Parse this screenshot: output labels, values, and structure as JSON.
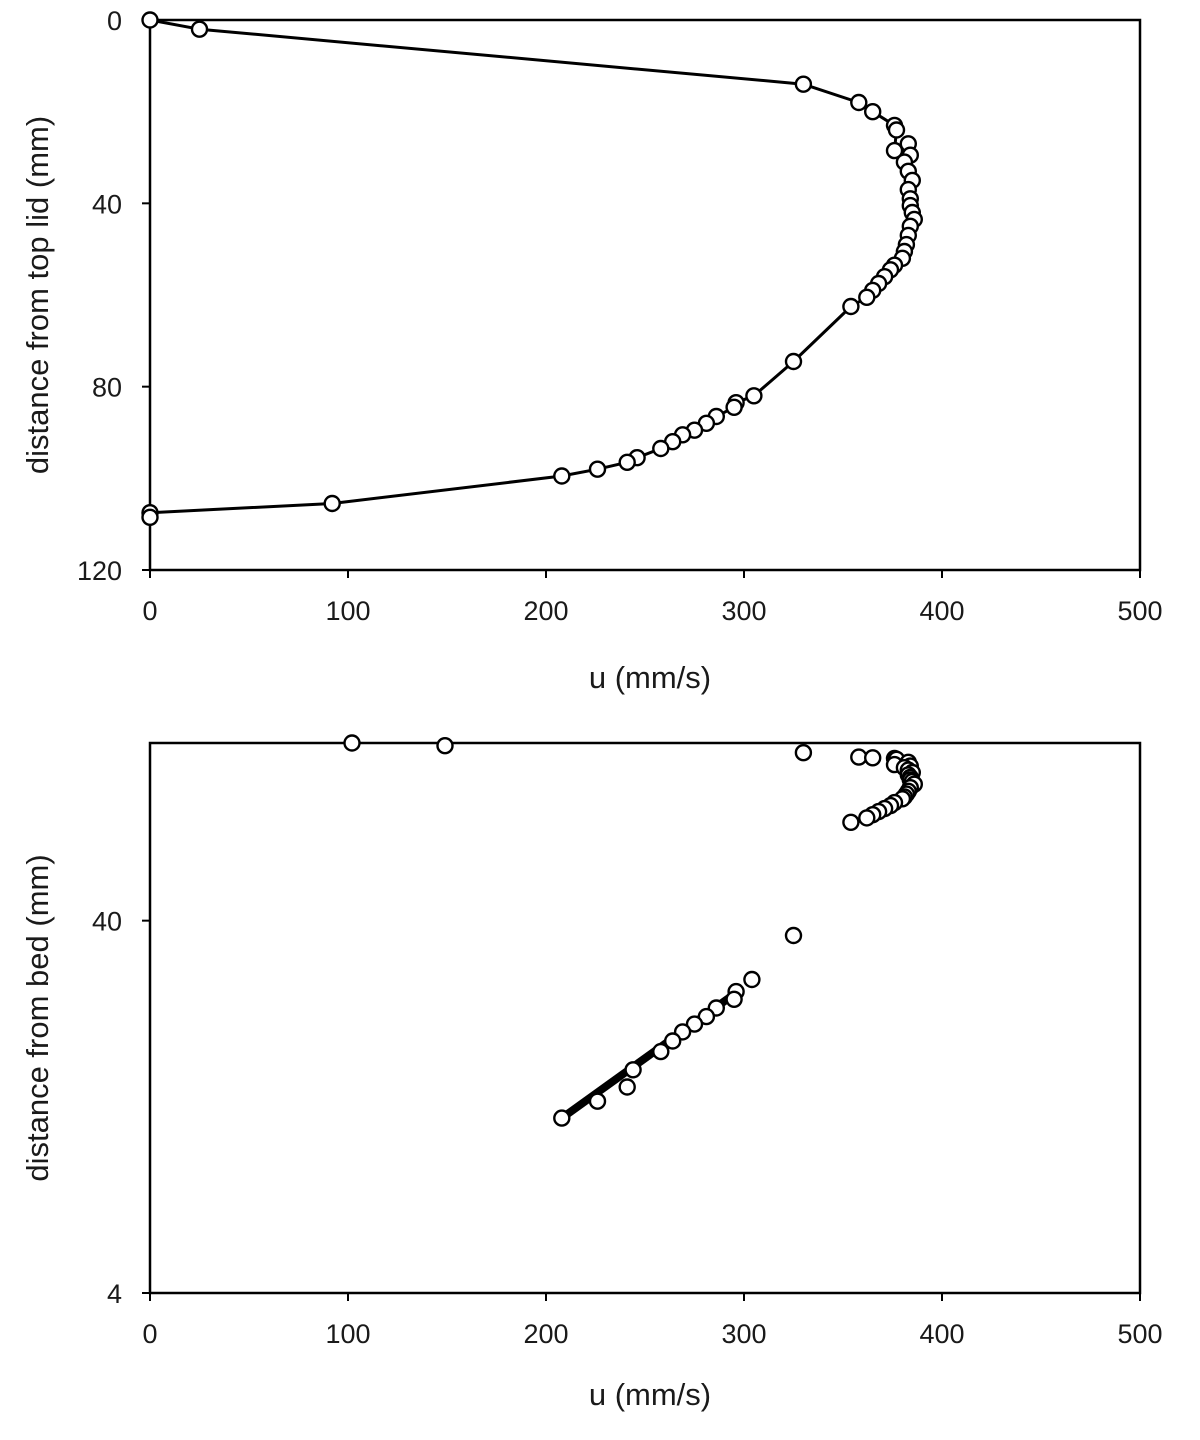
{
  "chart_data": [
    {
      "type": "line",
      "title": "",
      "xlabel": "u (mm/s)",
      "ylabel": "distance from top lid (mm)",
      "xlim": [
        0,
        500
      ],
      "ylim": [
        0,
        120
      ],
      "y_inverted": true,
      "x_ticks": [
        "0",
        "100",
        "200",
        "300",
        "400",
        "500"
      ],
      "y_ticks": [
        "0",
        "40",
        "80",
        "120"
      ],
      "grid": false,
      "legend": "none",
      "marker": "open-circle",
      "series": [
        {
          "x": [
            0,
            25,
            330,
            358,
            365,
            376,
            377,
            376,
            383,
            384,
            381,
            383,
            385,
            383,
            384,
            384,
            385,
            386,
            384,
            383,
            382,
            381,
            380,
            376,
            374,
            371,
            368,
            365,
            362,
            354,
            325,
            305,
            296,
            295,
            286,
            281,
            275,
            269,
            264,
            258,
            246,
            241,
            226,
            208,
            92,
            0,
            0
          ],
          "y": [
            0,
            2,
            14,
            18,
            20,
            23,
            24,
            28.5,
            27,
            29.5,
            31,
            33,
            35,
            37,
            39,
            40.5,
            42,
            43.5,
            45,
            47,
            49,
            50.5,
            52,
            53.5,
            54.5,
            56,
            57.5,
            59,
            60.5,
            62.5,
            74.5,
            82,
            83.5,
            84.5,
            86.5,
            88,
            89.5,
            90.5,
            92,
            93.5,
            95.5,
            96.5,
            98,
            99.5,
            105.5,
            107.5,
            108.5
          ]
        }
      ]
    },
    {
      "type": "scatter",
      "title": "",
      "xlabel": "u (mm/s)",
      "ylabel": "distance from bed (mm)",
      "xlim": [
        0,
        500
      ],
      "ylim": [
        4,
        120
      ],
      "y_scale": "log",
      "y_inverted": true,
      "x_ticks": [
        "0",
        "100",
        "200",
        "300",
        "400",
        "500"
      ],
      "y_ticks": [
        "40",
        "4"
      ],
      "grid": false,
      "legend": "none",
      "marker": "open-circle",
      "trendline": {
        "x": [
          208,
          296
        ],
        "y": [
          11.8,
          25.6
        ]
      },
      "series": [
        {
          "x": [
            102,
            149,
            330,
            358,
            365,
            376,
            377,
            376,
            383,
            384,
            381,
            383,
            385,
            383,
            384,
            384,
            385,
            386,
            384,
            383,
            382,
            381,
            380,
            376,
            374,
            371,
            368,
            365,
            362,
            354,
            325,
            304,
            296,
            295,
            286,
            281,
            275,
            269,
            264,
            258,
            244,
            241,
            226,
            208
          ],
          "y": [
            120,
            118,
            113,
            110,
            109.5,
            109,
            108.5,
            105,
            106.5,
            104,
            103,
            101.5,
            100,
            98.5,
            97,
            95.5,
            94.5,
            93,
            91,
            89,
            87.5,
            86,
            85,
            83,
            81.5,
            80,
            78.5,
            77,
            75.5,
            73.5,
            36.5,
            27.8,
            25.8,
            24.6,
            23.3,
            22.1,
            21.1,
            20.1,
            19.0,
            17.8,
            15.9,
            14.3,
            13.1,
            11.8
          ]
        }
      ]
    }
  ]
}
